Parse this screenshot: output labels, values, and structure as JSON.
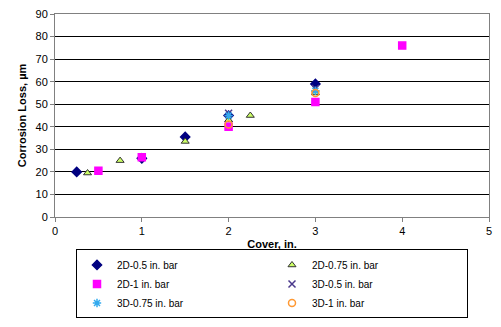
{
  "chart_data": {
    "type": "scatter",
    "x_label": "Cover, in.",
    "y_label": "Corrosion Loss, µm",
    "xlim": [
      0,
      5
    ],
    "xticks": [
      0,
      1,
      2,
      3,
      4,
      5
    ],
    "ylim": [
      0,
      90
    ],
    "yticks": [
      0,
      10,
      20,
      30,
      40,
      50,
      60,
      70,
      80,
      90
    ],
    "grid": true,
    "legend": "bottom",
    "series": [
      {
        "name": "2D-0.5 in. bar",
        "color": "#000080",
        "marker": "diamond",
        "x": [
          0.25,
          1,
          1.5,
          2,
          3
        ],
        "values": [
          20,
          26,
          35.5,
          45,
          59
        ]
      },
      {
        "name": "2D-0.75 in. bar",
        "color": "#ccff66",
        "marker": "triangle-up",
        "x": [
          0.375,
          0.75,
          1.5,
          2,
          2.25,
          3
        ],
        "values": [
          19.5,
          25,
          33.5,
          43,
          45,
          55
        ]
      },
      {
        "name": "2D-1 in. bar",
        "color": "#ff00ff",
        "marker": "square",
        "x": [
          0.5,
          1,
          2,
          3,
          4
        ],
        "values": [
          20.5,
          26.5,
          40,
          51,
          76
        ]
      },
      {
        "name": "3D-0.5 in. bar",
        "color": "#4b3a8c",
        "marker": "x",
        "x": [
          2,
          3
        ],
        "values": [
          46,
          57
        ]
      },
      {
        "name": "3D-0.75 in. bar",
        "color": "#33aaee",
        "marker": "asterisk",
        "x": [
          2,
          3
        ],
        "values": [
          45,
          56
        ]
      },
      {
        "name": "3D-1 in. bar",
        "color": "#ff9933",
        "marker": "circle-open",
        "x": [
          2,
          3
        ],
        "values": [
          41,
          55
        ]
      }
    ]
  }
}
